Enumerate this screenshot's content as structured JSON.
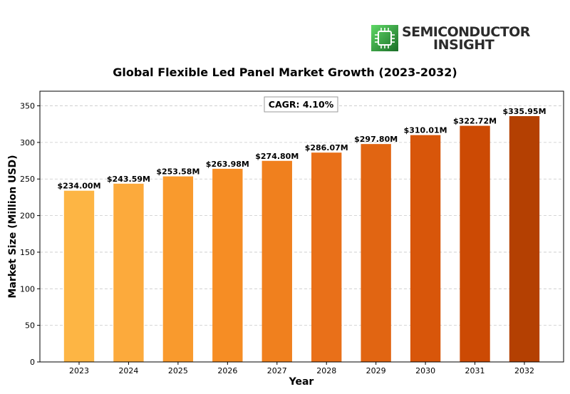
{
  "brand": {
    "line1": "SEMICONDUCTOR",
    "line2": "INSIGHT",
    "icon": "chip-icon",
    "colors": {
      "mark_dark": "#1e7a2c",
      "mark_light": "#4fcf5a",
      "text": "#2b2b2b"
    }
  },
  "chart_data": {
    "type": "bar",
    "title": "Global Flexible Led Panel Market Growth (2023-2032)",
    "xlabel": "Year",
    "ylabel": "Market Size (Million USD)",
    "categories": [
      "2023",
      "2024",
      "2025",
      "2026",
      "2027",
      "2028",
      "2029",
      "2030",
      "2031",
      "2032"
    ],
    "values": [
      234.0,
      243.59,
      253.58,
      263.98,
      274.8,
      286.07,
      297.8,
      310.01,
      322.72,
      335.95
    ],
    "value_labels": [
      "$234.00M",
      "$243.59M",
      "$253.58M",
      "$263.98M",
      "$274.80M",
      "$286.07M",
      "$297.80M",
      "$310.01M",
      "$322.72M",
      "$335.95M"
    ],
    "yticks": [
      0,
      50,
      100,
      150,
      200,
      250,
      300,
      350
    ],
    "ylim": [
      0,
      370
    ],
    "grid": "horizontal dashed",
    "annotation": "CAGR: 4.10%",
    "bar_colors": [
      "#fdb544",
      "#fcaa3c",
      "#f99a2d",
      "#f68d24",
      "#f0801e",
      "#e97019",
      "#e16512",
      "#d8560a",
      "#cc4a04",
      "#b44002"
    ]
  }
}
